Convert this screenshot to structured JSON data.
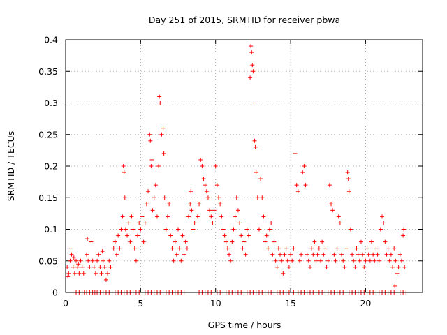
{
  "chart_data": {
    "type": "scatter",
    "title": "Day 251 of 2015, SRMTID for receiver pbwa",
    "xlabel": "GPS time / hours",
    "ylabel": "SRMTID / TECUs",
    "xlim": [
      0,
      23.8
    ],
    "ylim": [
      0,
      0.4
    ],
    "x_ticks": [
      0,
      5,
      10,
      15,
      20
    ],
    "x_tick_labels": [
      "0",
      "5",
      "10",
      "15",
      "20"
    ],
    "y_ticks": [
      0,
      0.05,
      0.1,
      0.15,
      0.2,
      0.25,
      0.3,
      0.35,
      0.4
    ],
    "y_tick_labels": [
      "0",
      "0.05",
      "0.1",
      "0.15",
      "0.2",
      "0.25",
      "0.3",
      "0.35",
      "0.4"
    ],
    "grid": true,
    "marker": "+",
    "color": "#ff0000",
    "series": [
      {
        "name": "SRMTID",
        "points": [
          [
            0.1,
            0.04
          ],
          [
            0.2,
            0.03
          ],
          [
            0.3,
            0.05
          ],
          [
            0.4,
            0.06
          ],
          [
            0.5,
            0.04
          ],
          [
            0.6,
            0.03
          ],
          [
            0.7,
            0.05
          ],
          [
            0.8,
            0.04
          ],
          [
            0.9,
            0.03
          ],
          [
            1.0,
            0.05
          ],
          [
            1.1,
            0.04
          ],
          [
            1.2,
            0.03
          ],
          [
            0.35,
            0.07
          ],
          [
            0.15,
            0.025
          ],
          [
            0.55,
            0.055
          ],
          [
            0.85,
            0.045
          ],
          [
            1.4,
            0.06
          ],
          [
            1.5,
            0.05
          ],
          [
            1.6,
            0.04
          ],
          [
            1.7,
            0.08
          ],
          [
            1.8,
            0.05
          ],
          [
            1.9,
            0.04
          ],
          [
            2.0,
            0.03
          ],
          [
            2.1,
            0.05
          ],
          [
            2.2,
            0.06
          ],
          [
            2.3,
            0.04
          ],
          [
            2.4,
            0.03
          ],
          [
            2.5,
            0.05
          ],
          [
            2.6,
            0.04
          ],
          [
            2.7,
            0.02
          ],
          [
            2.8,
            0.03
          ],
          [
            2.9,
            0.05
          ],
          [
            3.0,
            0.04
          ],
          [
            1.45,
            0.085
          ],
          [
            2.45,
            0.065
          ],
          [
            3.2,
            0.07
          ],
          [
            3.3,
            0.08
          ],
          [
            3.4,
            0.06
          ],
          [
            3.5,
            0.09
          ],
          [
            3.6,
            0.07
          ],
          [
            3.7,
            0.1
          ],
          [
            3.8,
            0.12
          ],
          [
            3.85,
            0.2
          ],
          [
            3.9,
            0.19
          ],
          [
            3.95,
            0.15
          ],
          [
            4.0,
            0.1
          ],
          [
            4.1,
            0.09
          ],
          [
            4.2,
            0.11
          ],
          [
            4.3,
            0.08
          ],
          [
            4.4,
            0.12
          ],
          [
            4.5,
            0.1
          ],
          [
            4.6,
            0.07
          ],
          [
            4.7,
            0.05
          ],
          [
            4.8,
            0.09
          ],
          [
            4.9,
            0.11
          ],
          [
            5.0,
            0.1
          ],
          [
            5.1,
            0.12
          ],
          [
            5.2,
            0.08
          ],
          [
            5.3,
            0.11
          ],
          [
            5.4,
            0.14
          ],
          [
            5.5,
            0.16
          ],
          [
            5.6,
            0.25
          ],
          [
            5.65,
            0.24
          ],
          [
            5.7,
            0.2
          ],
          [
            5.75,
            0.21
          ],
          [
            5.8,
            0.13
          ],
          [
            5.9,
            0.15
          ],
          [
            6.0,
            0.17
          ],
          [
            6.1,
            0.12
          ],
          [
            6.2,
            0.2
          ],
          [
            6.25,
            0.31
          ],
          [
            6.3,
            0.3
          ],
          [
            6.4,
            0.25
          ],
          [
            6.5,
            0.26
          ],
          [
            6.55,
            0.22
          ],
          [
            6.6,
            0.15
          ],
          [
            6.7,
            0.1
          ],
          [
            6.8,
            0.12
          ],
          [
            6.9,
            0.14
          ],
          [
            7.0,
            0.09
          ],
          [
            7.1,
            0.07
          ],
          [
            7.2,
            0.05
          ],
          [
            7.3,
            0.08
          ],
          [
            7.4,
            0.06
          ],
          [
            7.5,
            0.1
          ],
          [
            7.6,
            0.07
          ],
          [
            7.7,
            0.05
          ],
          [
            7.8,
            0.09
          ],
          [
            7.9,
            0.06
          ],
          [
            8.0,
            0.08
          ],
          [
            8.1,
            0.07
          ],
          [
            8.2,
            0.12
          ],
          [
            8.3,
            0.14
          ],
          [
            8.35,
            0.16
          ],
          [
            8.4,
            0.13
          ],
          [
            8.5,
            0.1
          ],
          [
            8.6,
            0.11
          ],
          [
            8.8,
            0.12
          ],
          [
            8.9,
            0.14
          ],
          [
            9.0,
            0.21
          ],
          [
            9.1,
            0.2
          ],
          [
            9.2,
            0.18
          ],
          [
            9.3,
            0.17
          ],
          [
            9.4,
            0.16
          ],
          [
            9.5,
            0.15
          ],
          [
            9.6,
            0.13
          ],
          [
            9.7,
            0.12
          ],
          [
            9.8,
            0.11
          ],
          [
            9.9,
            0.13
          ],
          [
            10.0,
            0.2
          ],
          [
            10.1,
            0.17
          ],
          [
            10.2,
            0.15
          ],
          [
            10.3,
            0.14
          ],
          [
            10.4,
            0.12
          ],
          [
            10.5,
            0.1
          ],
          [
            10.6,
            0.09
          ],
          [
            10.7,
            0.08
          ],
          [
            10.8,
            0.07
          ],
          [
            10.9,
            0.06
          ],
          [
            11.0,
            0.05
          ],
          [
            11.1,
            0.08
          ],
          [
            11.2,
            0.1
          ],
          [
            11.3,
            0.12
          ],
          [
            11.4,
            0.15
          ],
          [
            11.5,
            0.13
          ],
          [
            11.6,
            0.11
          ],
          [
            11.7,
            0.09
          ],
          [
            11.8,
            0.07
          ],
          [
            11.9,
            0.08
          ],
          [
            12.0,
            0.06
          ],
          [
            12.1,
            0.1
          ],
          [
            12.2,
            0.09
          ],
          [
            12.3,
            0.34
          ],
          [
            12.35,
            0.39
          ],
          [
            12.4,
            0.38
          ],
          [
            12.45,
            0.36
          ],
          [
            12.5,
            0.35
          ],
          [
            12.55,
            0.3
          ],
          [
            12.6,
            0.24
          ],
          [
            12.65,
            0.23
          ],
          [
            12.7,
            0.19
          ],
          [
            12.8,
            0.15
          ],
          [
            12.9,
            0.1
          ],
          [
            13.0,
            0.18
          ],
          [
            13.1,
            0.15
          ],
          [
            13.2,
            0.12
          ],
          [
            13.3,
            0.08
          ],
          [
            13.4,
            0.09
          ],
          [
            13.5,
            0.07
          ],
          [
            13.6,
            0.1
          ],
          [
            13.7,
            0.11
          ],
          [
            13.8,
            0.06
          ],
          [
            13.9,
            0.08
          ],
          [
            14.0,
            0.05
          ],
          [
            14.1,
            0.04
          ],
          [
            14.2,
            0.07
          ],
          [
            14.3,
            0.06
          ],
          [
            14.4,
            0.05
          ],
          [
            14.5,
            0.03
          ],
          [
            14.6,
            0.06
          ],
          [
            14.7,
            0.07
          ],
          [
            14.8,
            0.05
          ],
          [
            14.9,
            0.04
          ],
          [
            15.0,
            0.06
          ],
          [
            15.1,
            0.05
          ],
          [
            15.2,
            0.07
          ],
          [
            15.3,
            0.22
          ],
          [
            15.4,
            0.17
          ],
          [
            15.5,
            0.16
          ],
          [
            15.6,
            0.05
          ],
          [
            15.7,
            0.06
          ],
          [
            15.8,
            0.19
          ],
          [
            15.9,
            0.2
          ],
          [
            16.0,
            0.17
          ],
          [
            16.1,
            0.06
          ],
          [
            16.2,
            0.05
          ],
          [
            16.3,
            0.04
          ],
          [
            16.4,
            0.07
          ],
          [
            16.5,
            0.06
          ],
          [
            16.6,
            0.08
          ],
          [
            16.7,
            0.05
          ],
          [
            16.8,
            0.06
          ],
          [
            16.9,
            0.07
          ],
          [
            17.0,
            0.05
          ],
          [
            17.1,
            0.08
          ],
          [
            17.2,
            0.06
          ],
          [
            17.3,
            0.07
          ],
          [
            17.4,
            0.04
          ],
          [
            17.5,
            0.05
          ],
          [
            17.6,
            0.17
          ],
          [
            17.7,
            0.14
          ],
          [
            17.8,
            0.13
          ],
          [
            17.9,
            0.06
          ],
          [
            18.0,
            0.05
          ],
          [
            18.1,
            0.07
          ],
          [
            18.2,
            0.12
          ],
          [
            18.3,
            0.11
          ],
          [
            18.4,
            0.06
          ],
          [
            18.5,
            0.05
          ],
          [
            18.6,
            0.04
          ],
          [
            18.7,
            0.07
          ],
          [
            18.8,
            0.19
          ],
          [
            18.85,
            0.18
          ],
          [
            18.9,
            0.16
          ],
          [
            19.0,
            0.1
          ],
          [
            19.1,
            0.06
          ],
          [
            19.2,
            0.05
          ],
          [
            19.3,
            0.04
          ],
          [
            19.4,
            0.07
          ],
          [
            19.5,
            0.06
          ],
          [
            19.6,
            0.05
          ],
          [
            19.7,
            0.08
          ],
          [
            19.8,
            0.06
          ],
          [
            19.9,
            0.04
          ],
          [
            20.0,
            0.05
          ],
          [
            20.1,
            0.07
          ],
          [
            20.2,
            0.06
          ],
          [
            20.3,
            0.05
          ],
          [
            20.4,
            0.08
          ],
          [
            20.5,
            0.06
          ],
          [
            20.6,
            0.05
          ],
          [
            20.7,
            0.07
          ],
          [
            20.8,
            0.06
          ],
          [
            20.9,
            0.05
          ],
          [
            21.0,
            0.1
          ],
          [
            21.1,
            0.12
          ],
          [
            21.2,
            0.11
          ],
          [
            21.3,
            0.08
          ],
          [
            21.4,
            0.06
          ],
          [
            21.5,
            0.07
          ],
          [
            21.6,
            0.05
          ],
          [
            21.7,
            0.06
          ],
          [
            21.8,
            0.04
          ],
          [
            21.9,
            0.07
          ],
          [
            22.0,
            0.05
          ],
          [
            22.1,
            0.03
          ],
          [
            22.2,
            0.04
          ],
          [
            22.3,
            0.06
          ],
          [
            22.4,
            0.05
          ],
          [
            22.5,
            0.09
          ],
          [
            22.55,
            0.1
          ],
          [
            22.6,
            0.04
          ],
          [
            21.95,
            0.01
          ]
        ],
        "zero_x": [
          0.7,
          0.9,
          1.1,
          1.25,
          1.4,
          1.6,
          1.8,
          1.95,
          2.1,
          2.3,
          2.5,
          2.7,
          2.9,
          3.1,
          3.3,
          3.5,
          3.7,
          3.9,
          4.1,
          4.3,
          4.5,
          4.7,
          4.9,
          5.1,
          5.3,
          5.5,
          5.7,
          5.9,
          6.1,
          6.3,
          6.5,
          6.7,
          6.9,
          7.1,
          7.3,
          7.5,
          7.7,
          7.9,
          8.9,
          9.1,
          9.3,
          9.5,
          9.7,
          9.9,
          10.1,
          10.3,
          10.5,
          10.7,
          10.9,
          11.1,
          11.3,
          11.5,
          11.7,
          11.9,
          12.1,
          12.3,
          12.5,
          12.7,
          12.9,
          13.1,
          13.3,
          13.5,
          13.7,
          13.9,
          14.1,
          14.3,
          14.5,
          14.7,
          14.9,
          15.2,
          15.5,
          15.7,
          15.9,
          16.1,
          16.3,
          16.5,
          16.7,
          16.9,
          17.1,
          17.3,
          17.5,
          17.7,
          17.9,
          18.1,
          18.3,
          18.5,
          18.7,
          18.9,
          19.1,
          19.3,
          19.5,
          19.7,
          19.9,
          20.1,
          20.3,
          20.5,
          20.7,
          20.9,
          21.1,
          21.3,
          21.5,
          21.7,
          21.9,
          22.1,
          22.3,
          22.5,
          22.7
        ]
      }
    ]
  }
}
